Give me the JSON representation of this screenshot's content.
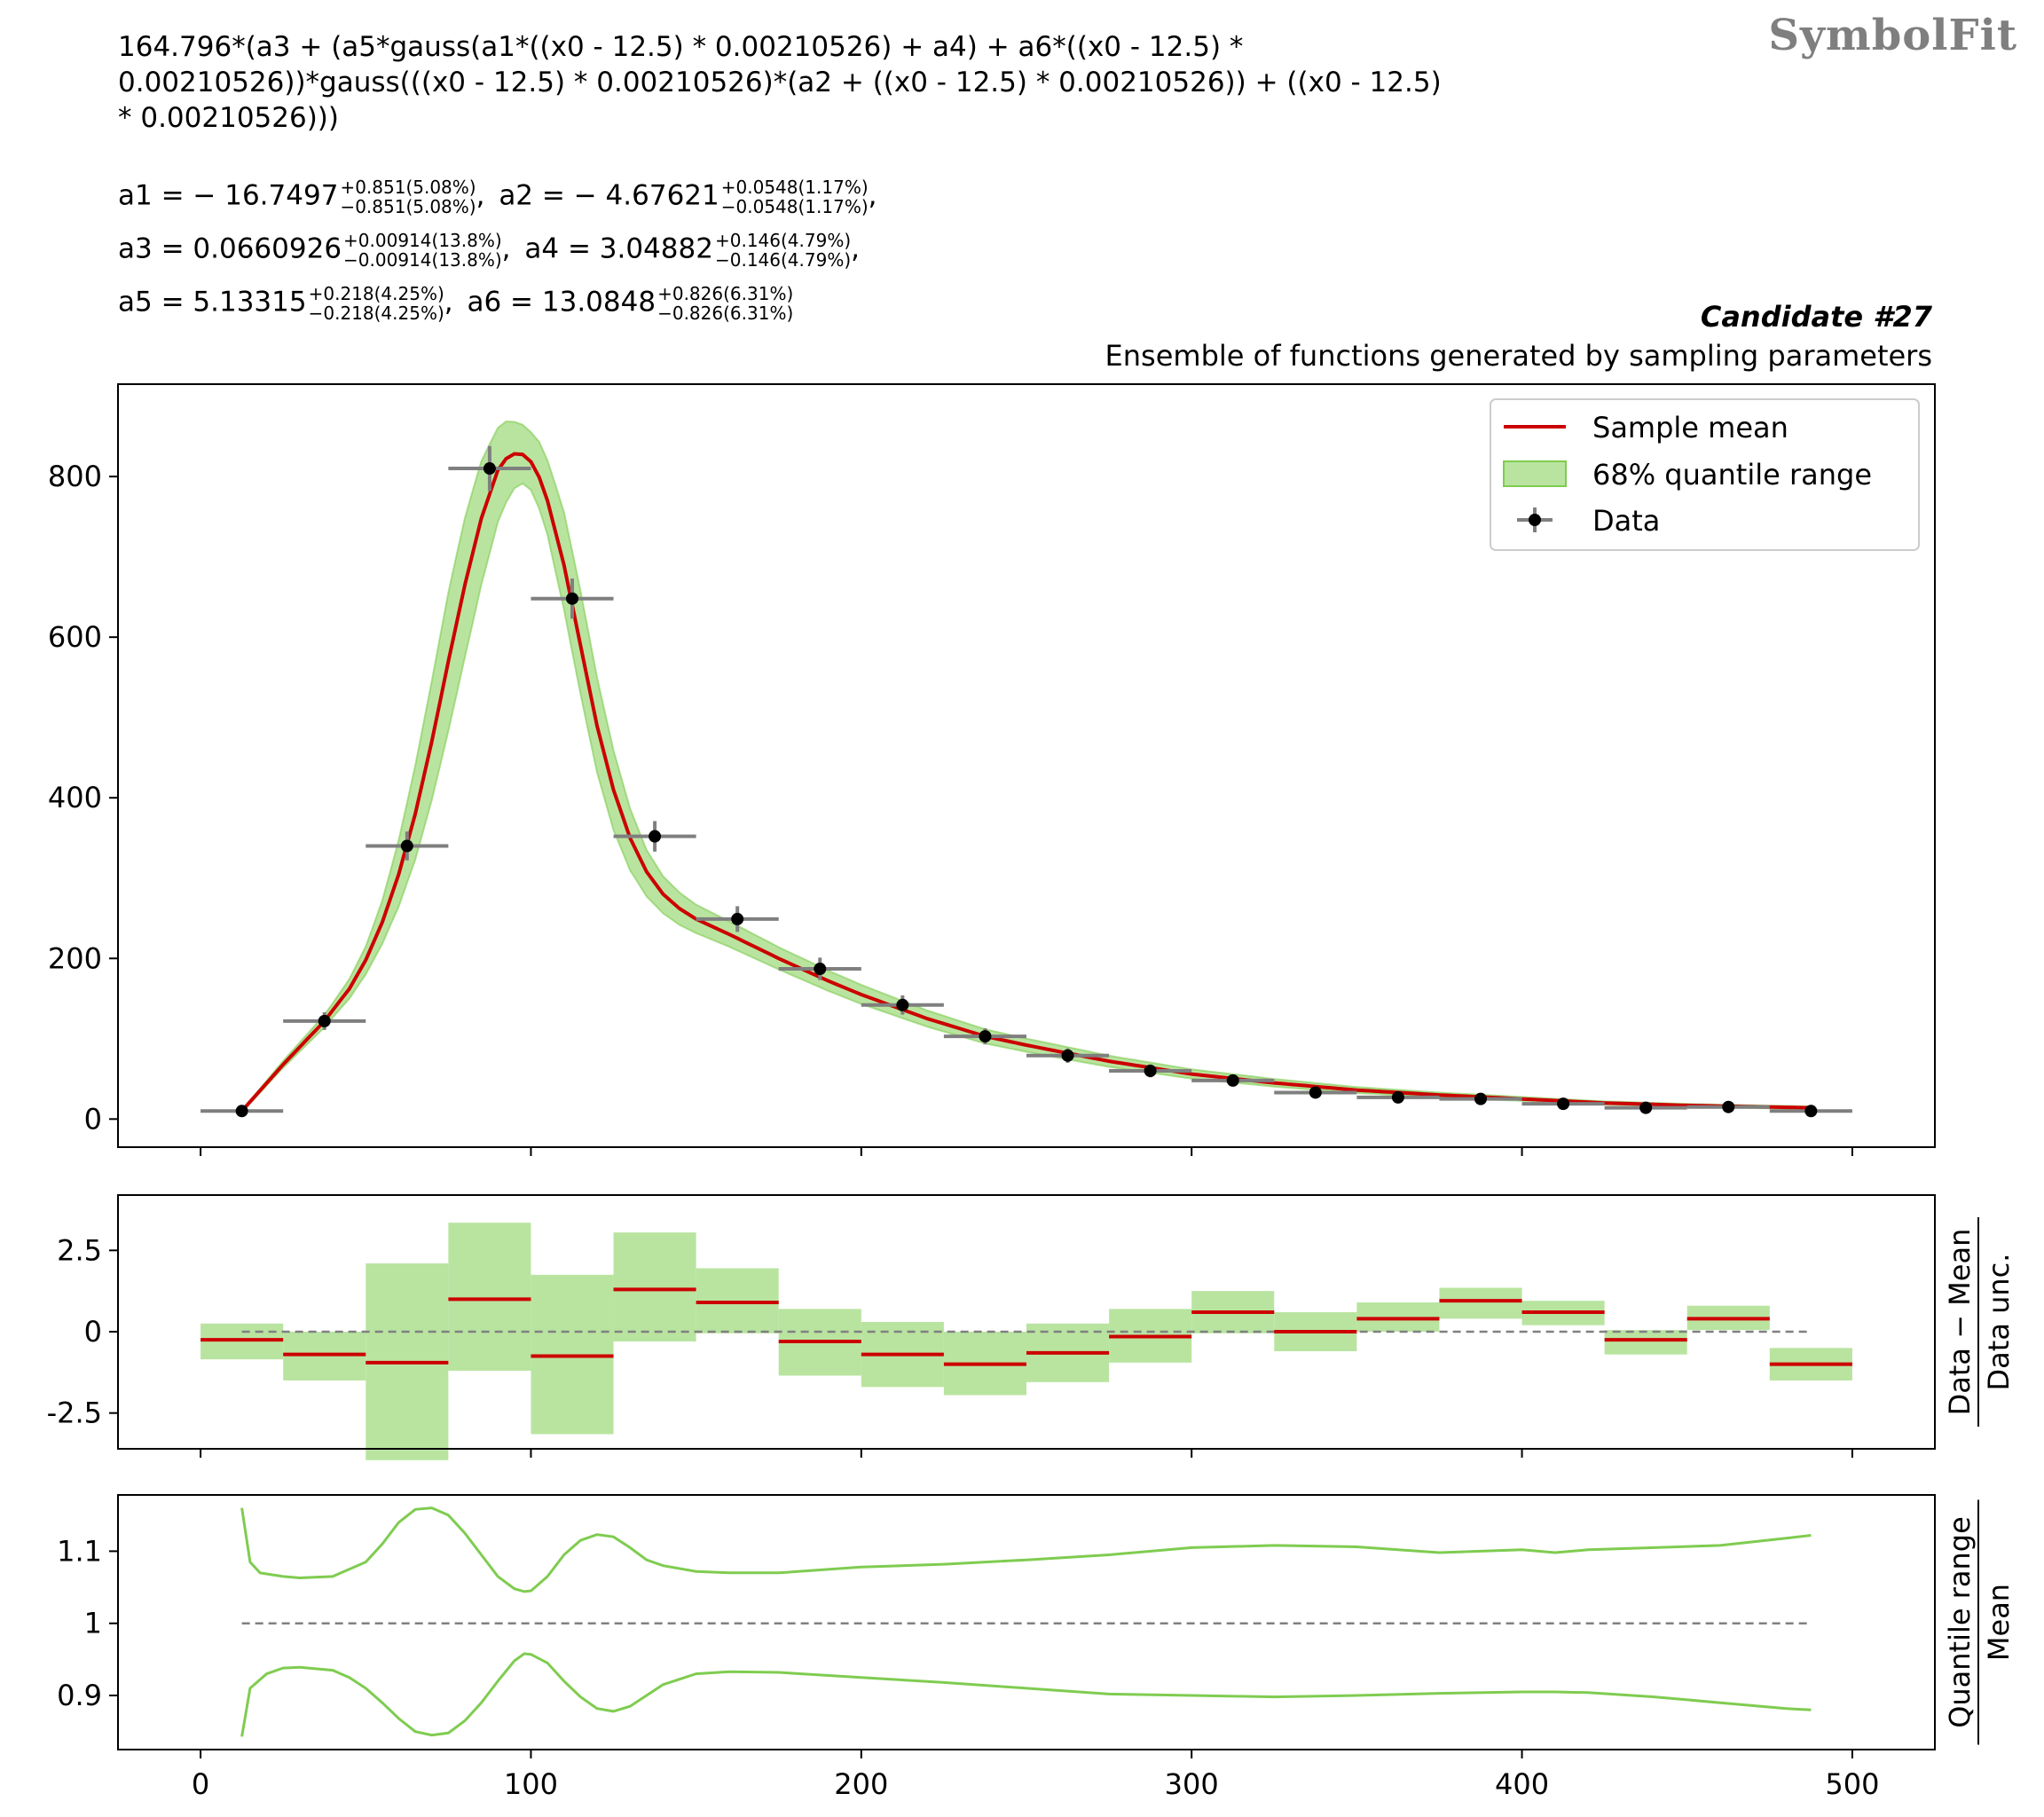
{
  "watermark": "SymbolFit",
  "formula": {
    "line1": "164.796*(a3 + (a5*gauss(a1*((x0 - 12.5) * 0.00210526) + a4) + a6*((x0 - 12.5) *",
    "line2": "0.00210526))*gauss(((x0 - 12.5) * 0.00210526)*(a2 + ((x0 - 12.5) * 0.00210526)) + ((x0 - 12.5)",
    "line3": "* 0.00210526)))"
  },
  "params": [
    {
      "name": "a1 = − 16.7497",
      "up": "+0.851(5.08%)",
      "down": "−0.851(5.08%)"
    },
    {
      "name": "a2 = − 4.67621",
      "up": "+0.0548(1.17%)",
      "down": "−0.0548(1.17%)"
    },
    {
      "name": "a3 = 0.0660926",
      "up": "+0.00914(13.8%)",
      "down": "−0.00914(13.8%)"
    },
    {
      "name": "a4 = 3.04882",
      "up": "+0.146(4.79%)",
      "down": "−0.146(4.79%)"
    },
    {
      "name": "a5 = 5.13315",
      "up": "+0.218(4.25%)",
      "down": "−0.218(4.25%)"
    },
    {
      "name": "a6 = 13.0848",
      "up": "+0.826(6.31%)",
      "down": "−0.826(6.31%)"
    }
  ],
  "candidate": "Candidate #27",
  "subtitle": "Ensemble of functions generated by sampling parameters",
  "colors": {
    "mean": "#cc0000",
    "band": "#b9e4a0",
    "band_edge": "#7fcc50",
    "data": "#000000",
    "xerr": "#7f7f7f",
    "ratio_line": "#7fcc50",
    "ref": "#808080"
  },
  "chart_data": [
    {
      "type": "line",
      "panel": "main",
      "legend": [
        "Sample mean",
        "68% quantile range",
        "Data"
      ],
      "legend_position": "top-right",
      "xlim": [
        -25,
        525
      ],
      "ylim": [
        -35,
        915
      ],
      "yticks": [
        0,
        200,
        400,
        600,
        800
      ],
      "xticks": [
        0,
        100,
        200,
        300,
        400,
        500
      ],
      "data": {
        "x": [
          12.5,
          37.5,
          62.5,
          87.5,
          112.5,
          137.5,
          162.5,
          187.5,
          212.5,
          237.5,
          262.5,
          287.5,
          312.5,
          337.5,
          362.5,
          387.5,
          412.5,
          437.5,
          462.5,
          487.5
        ],
        "y": [
          10,
          122,
          340,
          810,
          648,
          352,
          249,
          187,
          142,
          103,
          79,
          60,
          48,
          33,
          27,
          25,
          19,
          14,
          15,
          10
        ],
        "xerr": 12.5,
        "yerr": [
          3,
          11,
          18,
          28,
          25,
          19,
          16,
          14,
          12,
          10,
          9,
          8,
          7,
          6,
          5,
          5,
          4,
          4,
          4,
          3
        ]
      },
      "mean_curve": {
        "x": [
          12.5,
          25,
          37.5,
          45,
          50,
          55,
          60,
          65,
          70,
          75,
          80,
          85,
          90,
          93,
          96,
          99,
          102,
          105,
          110,
          115,
          120,
          125,
          130,
          135,
          140,
          145,
          150,
          160,
          175,
          190,
          200,
          220,
          237.5,
          250,
          275,
          300,
          325,
          350,
          375,
          400,
          425,
          450,
          475,
          487.5
        ],
        "y": [
          10,
          68,
          122,
          162,
          198,
          245,
          305,
          380,
          470,
          570,
          665,
          748,
          808,
          825,
          830,
          825,
          805,
          770,
          690,
          590,
          490,
          410,
          350,
          308,
          280,
          262,
          249,
          230,
          200,
          172,
          155,
          125,
          103,
          92,
          72,
          56,
          45,
          36,
          30,
          25,
          20,
          17,
          15,
          14
        ]
      },
      "band_low_ratio_x": [
        12.5,
        15,
        20,
        25,
        30,
        40,
        45,
        50,
        55,
        60,
        65,
        70,
        75,
        80,
        85,
        90,
        95,
        98,
        100,
        105,
        110,
        115,
        120,
        125,
        130,
        135,
        140,
        150,
        160,
        175,
        200,
        225,
        250,
        275,
        300,
        325,
        350,
        375,
        400,
        410,
        420,
        440,
        460,
        480,
        487.5
      ],
      "band_low_ratio": [
        0.843,
        0.91,
        0.93,
        0.938,
        0.939,
        0.935,
        0.925,
        0.91,
        0.89,
        0.868,
        0.85,
        0.845,
        0.848,
        0.865,
        0.89,
        0.92,
        0.948,
        0.958,
        0.957,
        0.945,
        0.92,
        0.898,
        0.882,
        0.878,
        0.885,
        0.9,
        0.915,
        0.93,
        0.933,
        0.932,
        0.925,
        0.918,
        0.91,
        0.902,
        0.9,
        0.898,
        0.9,
        0.903,
        0.905,
        0.905,
        0.904,
        0.898,
        0.89,
        0.882,
        0.88
      ],
      "band_high_ratio_x": [
        12.5,
        15,
        18,
        25,
        30,
        40,
        50,
        55,
        60,
        65,
        70,
        75,
        80,
        85,
        90,
        95,
        98,
        100,
        105,
        110,
        115,
        120,
        125,
        130,
        135,
        140,
        150,
        160,
        175,
        200,
        225,
        250,
        275,
        300,
        325,
        350,
        375,
        400,
        410,
        420,
        440,
        460,
        480,
        487.5
      ],
      "band_high_ratio": [
        1.16,
        1.085,
        1.07,
        1.065,
        1.063,
        1.065,
        1.085,
        1.11,
        1.14,
        1.158,
        1.16,
        1.15,
        1.125,
        1.095,
        1.065,
        1.048,
        1.044,
        1.045,
        1.065,
        1.095,
        1.115,
        1.123,
        1.12,
        1.105,
        1.088,
        1.08,
        1.072,
        1.07,
        1.07,
        1.078,
        1.082,
        1.088,
        1.095,
        1.105,
        1.108,
        1.106,
        1.098,
        1.102,
        1.098,
        1.102,
        1.105,
        1.108,
        1.118,
        1.122
      ]
    },
    {
      "type": "bar",
      "panel": "residual",
      "ylabel_num": "Data − Mean",
      "ylabel_den": "Data unc.",
      "ylim": [
        -3.6,
        4.2
      ],
      "yticks": [
        2.5,
        0,
        -2.5
      ],
      "ytick_labels": [
        "2.5",
        "0",
        "-2.5"
      ],
      "bins": [
        0,
        25,
        50,
        75,
        100,
        125,
        150,
        175,
        200,
        225,
        250,
        275,
        300,
        325,
        350,
        375,
        400,
        425,
        450,
        475,
        500
      ],
      "mean": [
        -0.25,
        -0.7,
        -0.95,
        1.0,
        -0.75,
        1.3,
        0.9,
        -0.3,
        -0.7,
        -1.0,
        -0.65,
        -0.15,
        0.6,
        0.0,
        0.4,
        0.95,
        0.6,
        -0.25,
        0.4,
        -1.0
      ],
      "low": [
        -0.85,
        -1.5,
        -3.95,
        -1.2,
        -3.15,
        -0.3,
        -0.05,
        -1.35,
        -1.7,
        -1.95,
        -1.55,
        -0.95,
        -0.05,
        -0.6,
        0.0,
        0.4,
        0.2,
        -0.7,
        0.05,
        -1.5
      ],
      "high": [
        0.25,
        0.0,
        2.1,
        3.35,
        1.75,
        3.05,
        1.95,
        0.7,
        0.3,
        0.0,
        0.25,
        0.7,
        1.25,
        0.6,
        0.9,
        1.35,
        0.95,
        0.05,
        0.8,
        -0.5
      ],
      "reference": 0
    },
    {
      "type": "line",
      "panel": "ratio",
      "ylabel_num": "Quantile range",
      "ylabel_den": "Mean",
      "ylim": [
        0.825,
        1.178
      ],
      "yticks": [
        1.1,
        1.0,
        0.9
      ],
      "ytick_labels": [
        "1.1",
        "1",
        "0.9"
      ],
      "reference": 1.0,
      "xticks": [
        0,
        100,
        200,
        300,
        400,
        500
      ],
      "xtick_labels": [
        "0",
        "100",
        "200",
        "300",
        "400",
        "500"
      ]
    }
  ]
}
